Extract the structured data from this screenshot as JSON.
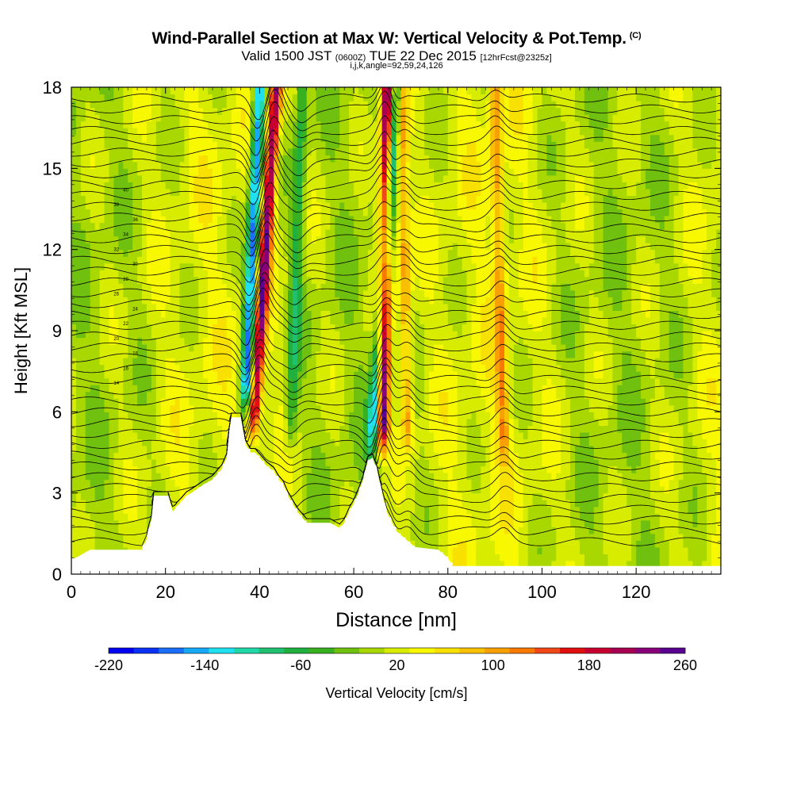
{
  "header": {
    "title": "Wind-Parallel Section at Max W: Vertical Velocity & Pot.Temp.",
    "copyright": "(C)",
    "valid_prefix": "Valid 1500 JST",
    "valid_utc": "(0600Z)",
    "valid_date": "TUE 22 Dec 2015",
    "forecast": "[12hrFcst@2325z]",
    "grid_info": "i,j,k,angle=92,59,24,126"
  },
  "colorbar": {
    "title": "Vertical Velocity [cm/s]",
    "colors": [
      "#0000f0",
      "#0a32f5",
      "#1a6ef8",
      "#18a8f8",
      "#20e0f0",
      "#20d8a8",
      "#20c070",
      "#20b040",
      "#38b020",
      "#70c010",
      "#a8d800",
      "#d8ec00",
      "#f8f800",
      "#f8e000",
      "#f8c000",
      "#f8a000",
      "#f87800",
      "#f04818",
      "#e01010",
      "#c80030",
      "#a80050",
      "#880078",
      "#5a0090"
    ],
    "min": -220,
    "max": 260,
    "step": 20,
    "tick_labels": [
      "-220",
      "-140",
      "-60",
      "20",
      "100",
      "180",
      "260"
    ]
  },
  "chart_data": {
    "type": "heatmap",
    "xlabel": "Distance [nm]",
    "ylabel": "Height [Kft MSL]",
    "xlim": [
      0,
      138
    ],
    "ylim": [
      0,
      18
    ],
    "x_ticks": [
      "0",
      "20",
      "40",
      "60",
      "80",
      "100",
      "120"
    ],
    "y_ticks": [
      "0",
      "3",
      "6",
      "9",
      "12",
      "15",
      "18"
    ],
    "updrafts": [
      {
        "x_base": 38.5,
        "x_top": 43.5,
        "z_base": 5.0,
        "w_max": 200
      },
      {
        "x_base": 66.0,
        "x_top": 67.2,
        "z_base": 4.5,
        "w_max": 260
      },
      {
        "x_base": 71.5,
        "x_top": 70.0,
        "z_base": 4.5,
        "w_max": 90
      },
      {
        "x_base": 92.0,
        "x_top": 90.0,
        "z_base": 4.0,
        "w_max": 80
      }
    ],
    "downdrafts": [
      {
        "x_base": 37.0,
        "x_top": 40.0,
        "z_base": 6.0,
        "w_min": -180
      },
      {
        "x_base": 64.0,
        "x_top": 69.0,
        "z_base": 4.5,
        "w_min": -160
      },
      {
        "x_base": 46.5,
        "x_top": 49.0,
        "z_base": 4.5,
        "w_min": -70
      }
    ],
    "terrain": [
      [
        0,
        0.6
      ],
      [
        1,
        0.6
      ],
      [
        4,
        0.9
      ],
      [
        15,
        0.9
      ],
      [
        16,
        1.3
      ],
      [
        16.5,
        1.7
      ],
      [
        17,
        2.0
      ],
      [
        17.3,
        2.9
      ],
      [
        19,
        2.9
      ],
      [
        20.5,
        2.9
      ],
      [
        21,
        2.6
      ],
      [
        21.6,
        2.3
      ],
      [
        22.4,
        2.5
      ],
      [
        23.5,
        2.7
      ],
      [
        24.5,
        2.9
      ],
      [
        25.5,
        3.0
      ],
      [
        28,
        3.3
      ],
      [
        30,
        3.5
      ],
      [
        32,
        3.9
      ],
      [
        33,
        4.3
      ],
      [
        33.3,
        5.0
      ],
      [
        34,
        5.8
      ],
      [
        36,
        5.8
      ],
      [
        37,
        4.8
      ],
      [
        38,
        4.5
      ],
      [
        39,
        4.5
      ],
      [
        40,
        4.3
      ],
      [
        41.5,
        4.0
      ],
      [
        43,
        3.8
      ],
      [
        44,
        3.5
      ],
      [
        45,
        3.3
      ],
      [
        46,
        2.9
      ],
      [
        47,
        2.6
      ],
      [
        48,
        2.3
      ],
      [
        49,
        2.1
      ],
      [
        50,
        1.9
      ],
      [
        55,
        1.9
      ],
      [
        57,
        1.7
      ],
      [
        58,
        1.9
      ],
      [
        59,
        2.3
      ],
      [
        60,
        2.6
      ],
      [
        61,
        3.0
      ],
      [
        62,
        3.5
      ],
      [
        63,
        4.2
      ],
      [
        64,
        4.3
      ],
      [
        65,
        3.8
      ],
      [
        66,
        3.0
      ],
      [
        67,
        2.3
      ],
      [
        69,
        1.6
      ],
      [
        71,
        1.3
      ],
      [
        73,
        1.0
      ],
      [
        78,
        0.9
      ],
      [
        80,
        0.6
      ],
      [
        81,
        0.3
      ],
      [
        138,
        0.3
      ]
    ],
    "isentrope_labels": [
      "14",
      "16",
      "18",
      "20",
      "22",
      "24",
      "26",
      "28",
      "30",
      "32",
      "34",
      "36",
      "38",
      "40"
    ]
  }
}
